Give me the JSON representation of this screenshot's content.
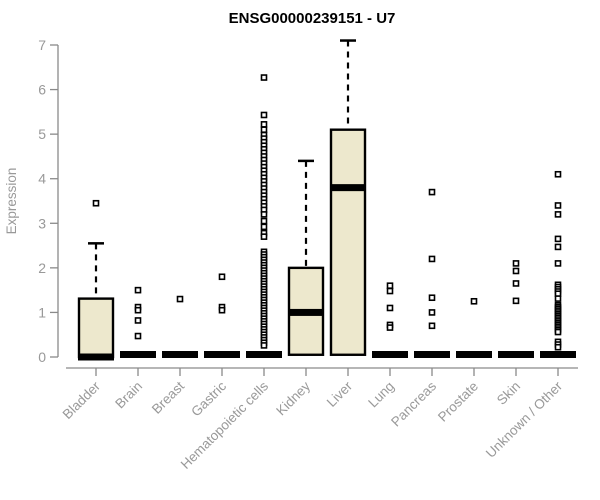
{
  "colors": {
    "background": "#ffffff",
    "box_fill": "#EDE8CD",
    "box_border": "#000000",
    "median": "#000000",
    "whisker": "#000000",
    "outlier_stroke": "#000000",
    "outlier_fill": "#ffffff",
    "axis": "#8a8a8a",
    "tick_label": "#999999",
    "title": "#000000"
  },
  "chart_data": {
    "type": "boxplot",
    "title": "ENSG00000239151 - U7",
    "xlabel": "",
    "ylabel": "Expression",
    "ylim": [
      0,
      7
    ],
    "yticks": [
      0,
      1,
      2,
      3,
      4,
      5,
      6,
      7
    ],
    "grid": false,
    "legend": "none",
    "categories": [
      "Bladder",
      "Brain",
      "Breast",
      "Gastric",
      "Hematopoietic cells",
      "Kidney",
      "Liver",
      "Lung",
      "Pancreas",
      "Prostate",
      "Skin",
      "Unknown / Other"
    ],
    "boxes": [
      {
        "label": "Bladder",
        "collapsed": false,
        "q1": 0,
        "median": 0,
        "q3": 1.31,
        "whisker_low": 0,
        "whisker_high": 2.55,
        "outliers": [
          3.45
        ]
      },
      {
        "label": "Brain",
        "collapsed": true,
        "median": 0,
        "outliers": [
          1.5,
          1.12,
          1.05,
          0.82,
          0.47
        ]
      },
      {
        "label": "Breast",
        "collapsed": true,
        "median": 0,
        "outliers": [
          1.3
        ]
      },
      {
        "label": "Gastric",
        "collapsed": true,
        "median": 0,
        "outliers": [
          1.8,
          1.12,
          1.05
        ]
      },
      {
        "label": "Hematopoietic cells",
        "collapsed": true,
        "median": 0,
        "outliers": [
          6.27,
          5.43,
          5.22,
          5.1,
          4.98,
          4.9,
          4.82,
          4.74,
          4.66,
          4.58,
          4.5,
          4.42,
          4.34,
          4.26,
          4.18,
          4.1,
          4.02,
          3.94,
          3.86,
          3.78,
          3.7,
          3.62,
          3.54,
          3.46,
          3.38,
          3.3,
          3.2,
          3.05,
          2.92,
          2.78,
          2.7,
          2.36,
          2.3,
          2.24,
          2.18,
          2.12,
          2.06,
          2.0,
          1.94,
          1.88,
          1.82,
          1.76,
          1.7,
          1.64,
          1.58,
          1.52,
          1.46,
          1.4,
          1.34,
          1.28,
          1.22,
          1.16,
          1.1,
          1.04,
          0.98,
          0.92,
          0.86,
          0.8,
          0.74,
          0.68,
          0.62,
          0.56,
          0.5,
          0.44,
          0.38,
          0.32,
          0.26
        ]
      },
      {
        "label": "Kidney",
        "collapsed": false,
        "q1": 0.05,
        "median": 1.0,
        "q3": 2.0,
        "whisker_low": 0.05,
        "whisker_high": 4.4,
        "outliers": []
      },
      {
        "label": "Liver",
        "collapsed": false,
        "q1": 0.05,
        "median": 3.8,
        "q3": 5.1,
        "whisker_low": 0.05,
        "whisker_high": 7.1,
        "outliers": []
      },
      {
        "label": "Lung",
        "collapsed": true,
        "median": 0,
        "outliers": [
          1.6,
          1.48,
          1.1,
          0.72,
          0.66
        ]
      },
      {
        "label": "Pancreas",
        "collapsed": true,
        "median": 0,
        "outliers": [
          3.7,
          2.2,
          1.33,
          1.0,
          0.7
        ]
      },
      {
        "label": "Prostate",
        "collapsed": true,
        "median": 0,
        "outliers": [
          1.25
        ]
      },
      {
        "label": "Skin",
        "collapsed": true,
        "median": 0,
        "outliers": [
          2.1,
          1.93,
          1.65,
          1.26
        ]
      },
      {
        "label": "Unknown / Other",
        "collapsed": true,
        "median": 0,
        "outliers": [
          4.1,
          3.4,
          3.2,
          2.65,
          2.47,
          2.1,
          1.62,
          1.57,
          1.52,
          1.47,
          1.42,
          1.31,
          1.16,
          1.12,
          1.08,
          1.04,
          1.0,
          0.96,
          0.92,
          0.88,
          0.84,
          0.8,
          0.76,
          0.72,
          0.68,
          0.64,
          0.6,
          0.56,
          0.34,
          0.28,
          0.22
        ]
      }
    ]
  }
}
